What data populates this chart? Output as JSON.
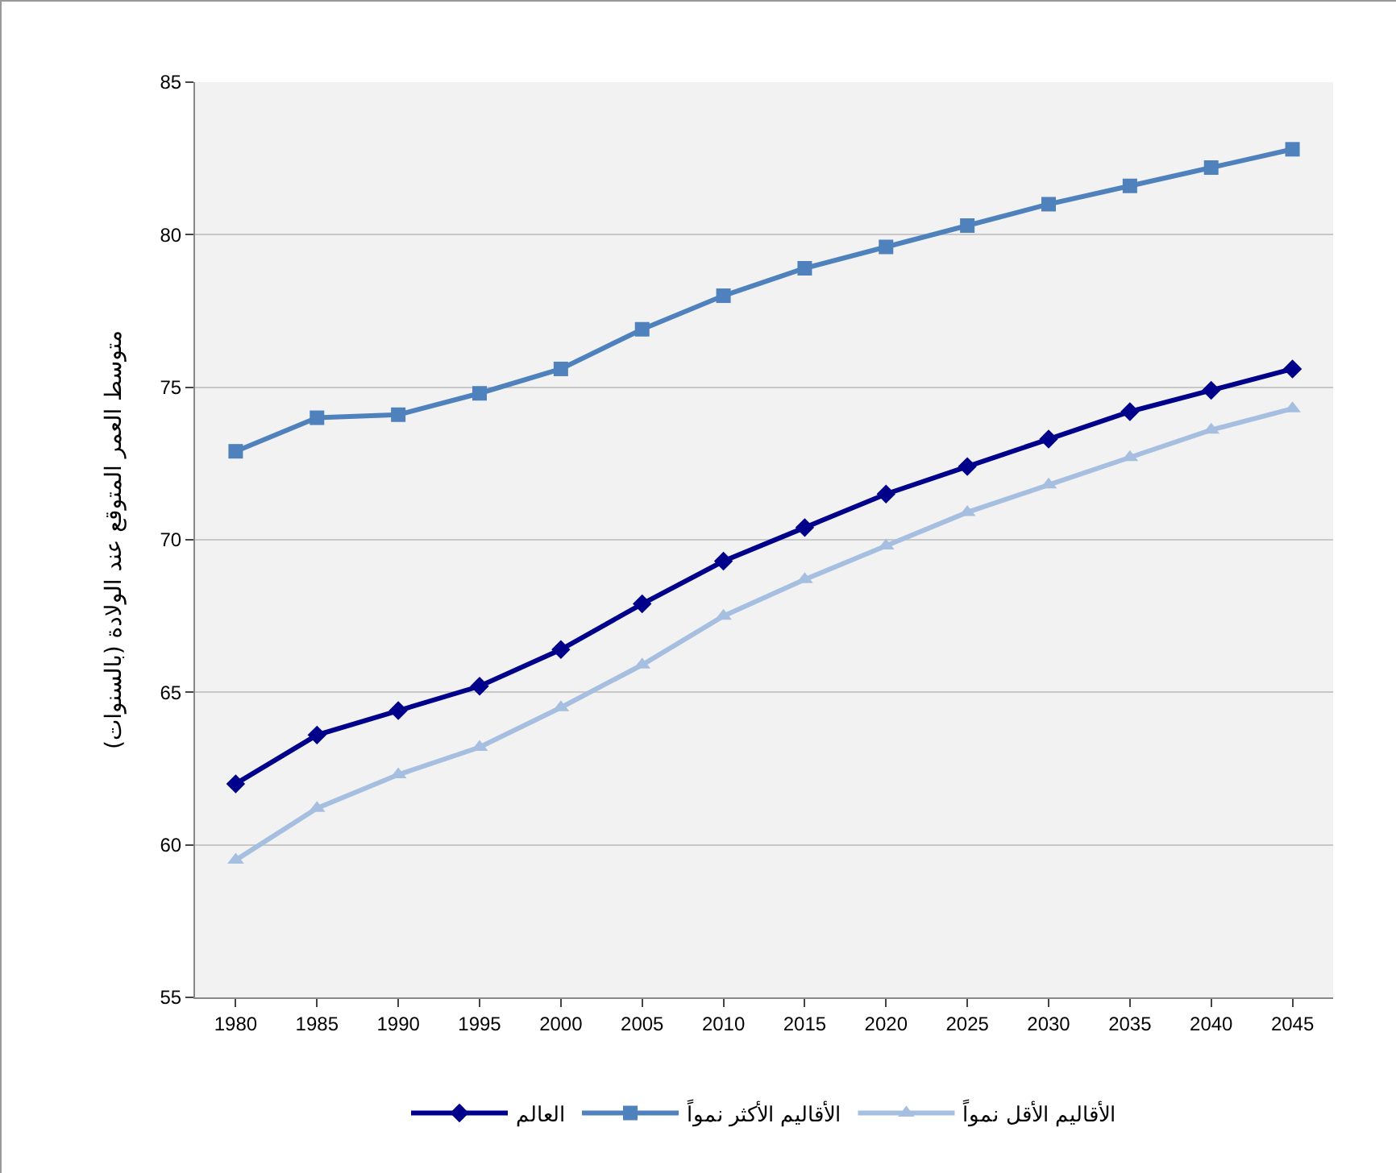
{
  "chart_data": {
    "type": "line",
    "ylabel": "متوسط العمر المتوقع عند الولادة (بالسنوات)",
    "categories": [
      "1980",
      "1985",
      "1990",
      "1995",
      "2000",
      "2005",
      "2010",
      "2015",
      "2020",
      "2025",
      "2030",
      "2035",
      "2040",
      "2045"
    ],
    "series": [
      {
        "name": "العالم",
        "color": "#00008b",
        "marker": "diamond",
        "values": [
          62.0,
          63.6,
          64.4,
          65.2,
          66.4,
          67.9,
          69.3,
          70.4,
          71.5,
          72.4,
          73.3,
          74.2,
          74.9,
          75.6
        ]
      },
      {
        "name": "الأقاليم الأكثر نمواً",
        "color": "#4f81bd",
        "marker": "square",
        "values": [
          72.9,
          74.0,
          74.1,
          74.8,
          75.6,
          76.9,
          78.0,
          78.9,
          79.6,
          80.3,
          81.0,
          81.6,
          82.2,
          82.8
        ]
      },
      {
        "name": "الأقاليم الأقل نمواً",
        "color": "#a6bfe0",
        "marker": "triangle",
        "values": [
          59.5,
          61.2,
          62.3,
          63.2,
          64.5,
          65.9,
          67.5,
          68.7,
          69.8,
          70.9,
          71.8,
          72.7,
          73.6,
          74.3
        ]
      }
    ],
    "ylim": [
      55,
      85
    ],
    "yticks": [
      55,
      60,
      65,
      70,
      75,
      80,
      85
    ],
    "grid": "y",
    "legend": "bottom",
    "line_style": "solid"
  }
}
